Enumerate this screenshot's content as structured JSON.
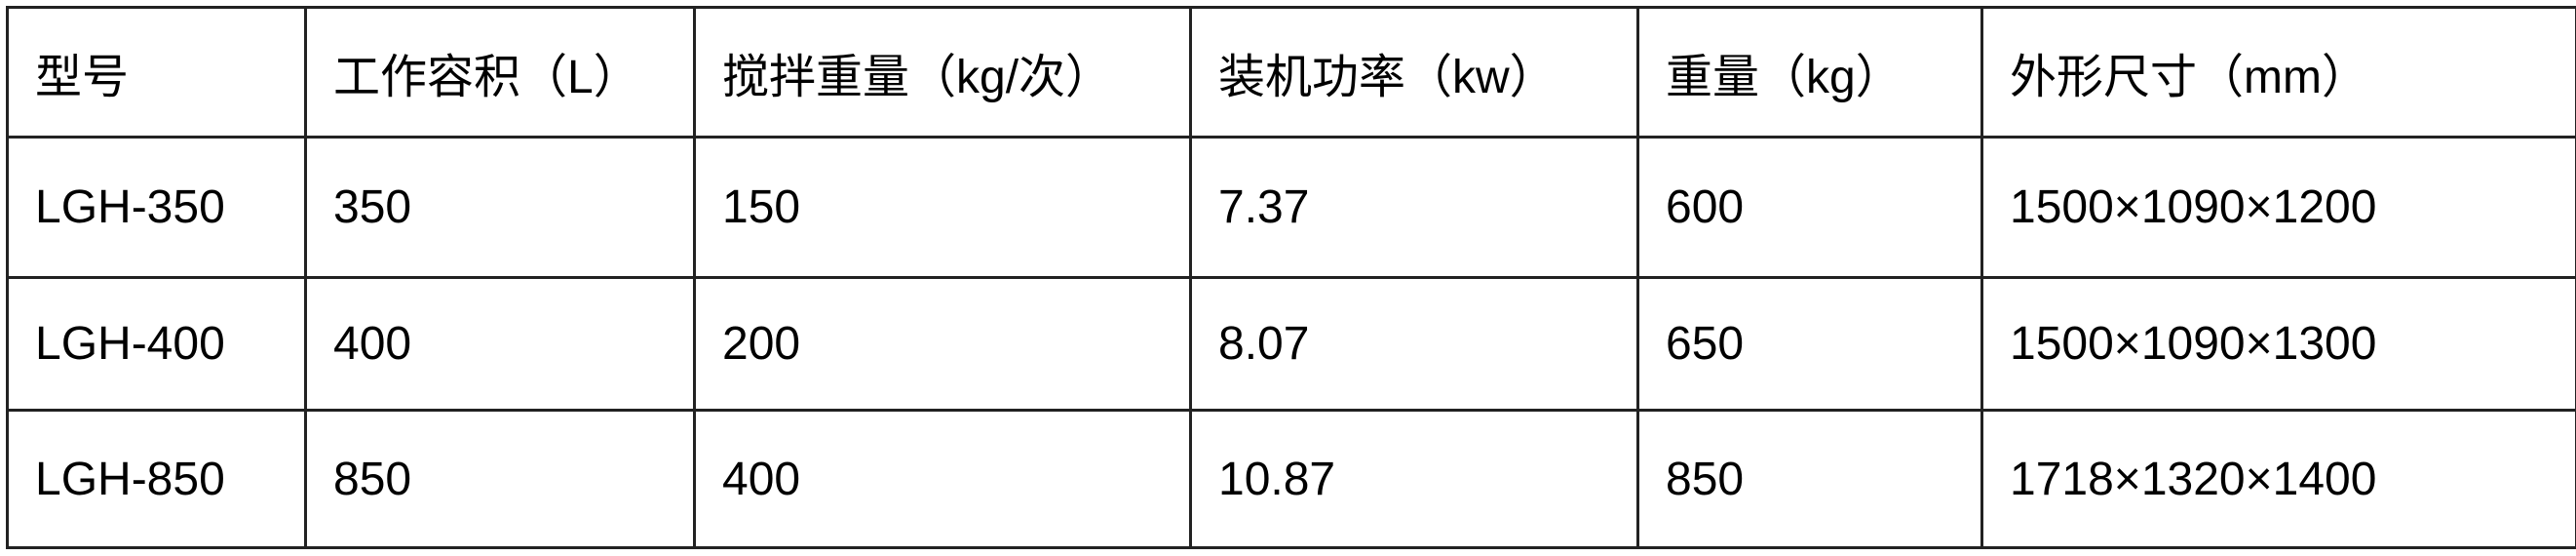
{
  "table": {
    "headers": [
      "型号",
      "工作容积（L）",
      "搅拌重量（kg/次）",
      "装机功率（kw）",
      "重量（kg）",
      "外形尺寸（mm）"
    ],
    "rows": [
      [
        "LGH-350",
        "350",
        "150",
        "7.37",
        "600",
        "1500×1090×1200"
      ],
      [
        "LGH-400",
        "400",
        "200",
        "8.07",
        "650",
        "1500×1090×1300"
      ],
      [
        "LGH-850",
        "850",
        "400",
        "10.87",
        "850",
        "1718×1320×1400"
      ]
    ]
  }
}
